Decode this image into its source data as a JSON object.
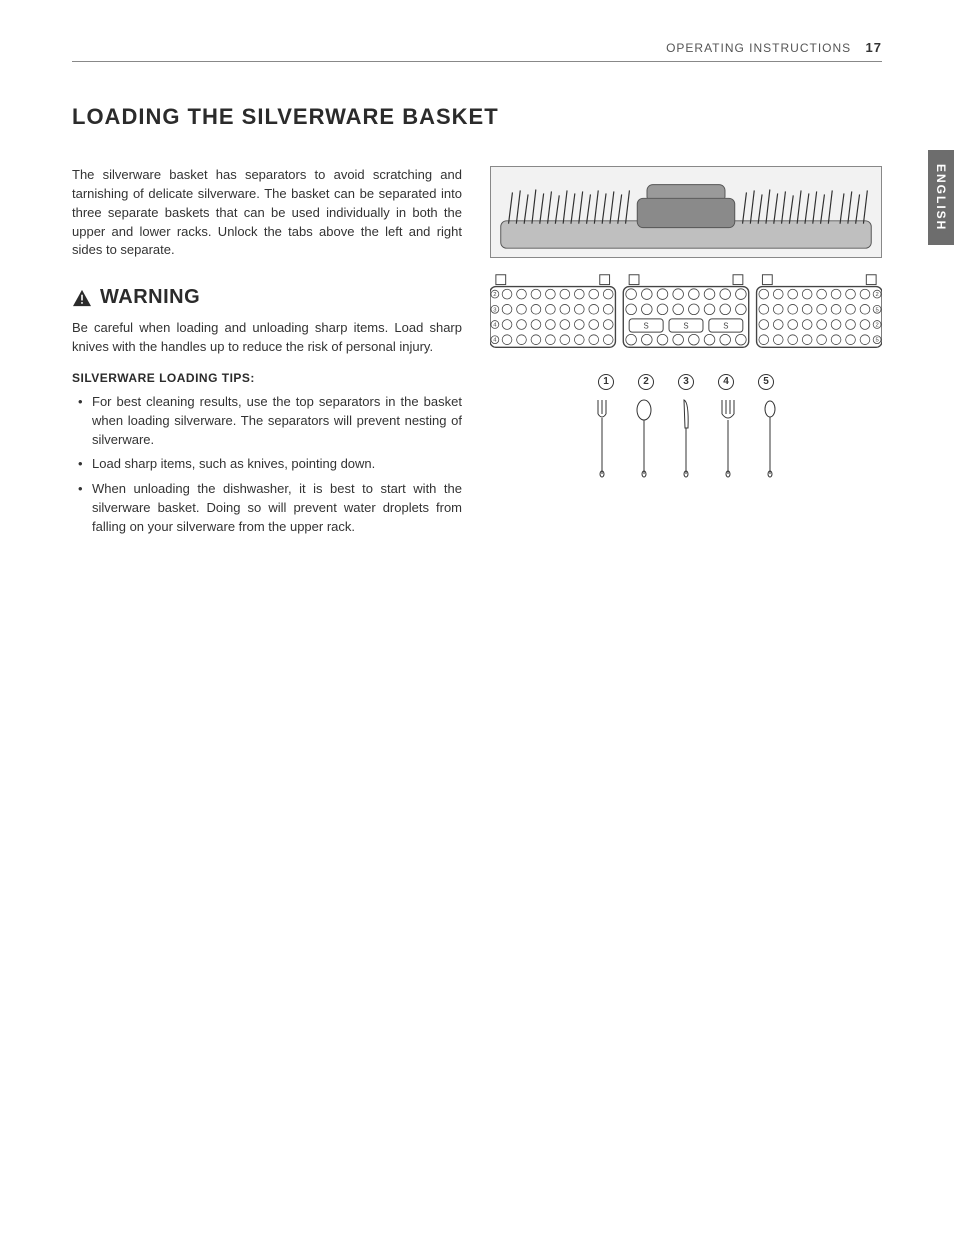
{
  "header": {
    "section": "OPERATING INSTRUCTIONS",
    "page_number": "17"
  },
  "language_tab": "ENGLISH",
  "title": "LOADING THE SILVERWARE BASKET",
  "intro_paragraph": "The silverware basket has separators to avoid scratching and tarnishing of delicate silverware. The basket can be separated into three separate baskets that can be used individually in both the upper and lower racks. Unlock the tabs above the left and right sides to separate.",
  "warning": {
    "label": "WARNING",
    "text": "Be careful when loading and unloading sharp items. Load sharp knives with the handles up to reduce the risk of personal injury."
  },
  "tips": {
    "heading": "SILVERWARE LOADING TIPS:",
    "items": [
      "For best cleaning results, use the top separators in the basket when loading silverware. The separators will prevent nesting of silverware.",
      " Load sharp items, such as knives, pointing down.",
      "When unloading the dishwasher, it is best to start with the silverware basket. Doing so will prevent water droplets from falling on your silverware from the upper rack."
    ]
  },
  "diagram": {
    "basket_sections": 3,
    "rows_per_section": 4,
    "row_labels_left": [
      "2",
      "3",
      "4",
      "4"
    ],
    "row_labels_right": [
      "2",
      "5",
      "2",
      "5"
    ],
    "center_slot_labels": [
      "S",
      "S",
      "S"
    ],
    "legend_numbers": [
      "1",
      "2",
      "3",
      "4",
      "5"
    ],
    "utensils": [
      "fork",
      "spoon-large",
      "knife",
      "fork-wide",
      "spoon-small"
    ]
  },
  "colors": {
    "text": "#333333",
    "rule": "#888888",
    "tab_bg": "#6d6d6d",
    "tab_text": "#ffffff",
    "figure_stroke": "#444444",
    "figure_fill": "#dddddd"
  }
}
